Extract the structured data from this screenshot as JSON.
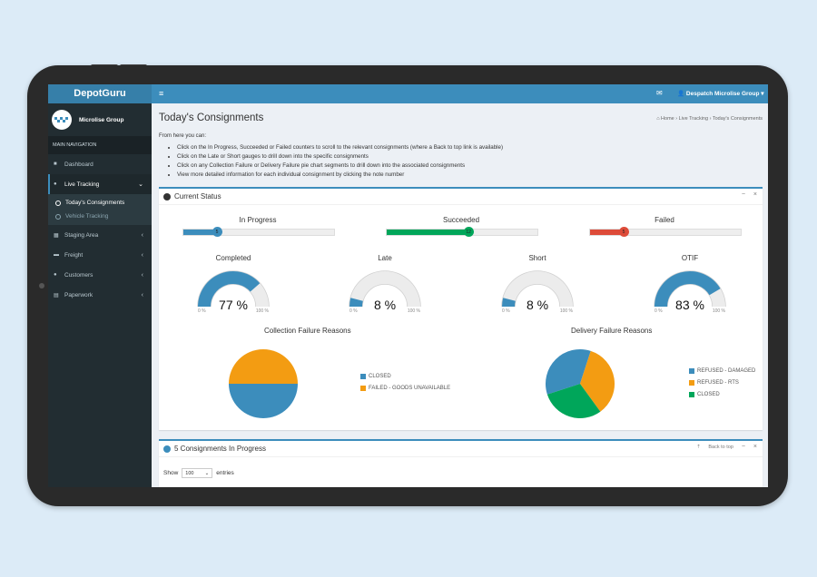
{
  "app": {
    "logo": "DepotGuru"
  },
  "user_panel": {
    "name": "Microlise Group"
  },
  "nav": {
    "header": "MAIN NAVIGATION",
    "items": [
      {
        "label": "Dashboard",
        "icon": "dashboard-icon"
      },
      {
        "label": "Live Tracking",
        "icon": "map-marker-icon"
      },
      {
        "label": "Staging Area",
        "icon": "building-icon"
      },
      {
        "label": "Freight",
        "icon": "truck-icon"
      },
      {
        "label": "Customers",
        "icon": "users-icon"
      },
      {
        "label": "Paperwork",
        "icon": "file-icon"
      }
    ],
    "submenu": [
      {
        "label": "Today's Consignments"
      },
      {
        "label": "Vehicle Tracking"
      }
    ]
  },
  "topbar": {
    "user": "Despatch Microlise Group"
  },
  "page": {
    "title": "Today's Consignments",
    "breadcrumb": [
      "Home",
      "Live Tracking",
      "Today's Consignments"
    ],
    "intro": "From here you can:",
    "bullets": [
      "Click on the In Progress, Succeeded or Failed counters to scroll to the relevant consignments (where a Back to top link is available)",
      "Click on the Late or Short gauges to drill down into the specific consignments",
      "Click on any Collection Failure or Delivery Failure pie chart segments to drill down into the associated consignments",
      "View more detailed information for each individual consignment by clicking the note number"
    ]
  },
  "status_box": {
    "title": "Current Status",
    "counters": [
      {
        "label": "In Progress",
        "value": "5",
        "fraction": 0.22,
        "color": "#3c8dbc"
      },
      {
        "label": "Succeeded",
        "value": "12",
        "fraction": 0.54,
        "color": "#00a65a"
      },
      {
        "label": "Failed",
        "value": "5",
        "fraction": 0.22,
        "color": "#dd4b39"
      }
    ],
    "gauges": [
      {
        "label": "Completed",
        "value": "77 %",
        "fraction": 0.77,
        "color": "#3c8dbc",
        "min": "0 %",
        "max": "100 %"
      },
      {
        "label": "Late",
        "value": "8 %",
        "fraction": 0.08,
        "color": "#3c8dbc",
        "min": "0 %",
        "max": "100 %"
      },
      {
        "label": "Short",
        "value": "8 %",
        "fraction": 0.08,
        "color": "#3c8dbc",
        "min": "0 %",
        "max": "100 %"
      },
      {
        "label": "OTIF",
        "value": "83 %",
        "fraction": 0.83,
        "color": "#3c8dbc",
        "min": "0 %",
        "max": "100 %"
      }
    ],
    "collection_pie": {
      "title": "Collection Failure Reasons",
      "slices": [
        {
          "label": "CLOSED",
          "value": 50,
          "color": "#3c8dbc"
        },
        {
          "label": "FAILED - GOODS UNAVAILABLE",
          "value": 50,
          "color": "#f39c12"
        }
      ]
    },
    "delivery_pie": {
      "title": "Delivery Failure Reasons",
      "slices": [
        {
          "label": "REFUSED - DAMAGED",
          "value": 35,
          "color": "#3c8dbc"
        },
        {
          "label": "REFUSED - RTS",
          "value": 35,
          "color": "#f39c12"
        },
        {
          "label": "CLOSED",
          "value": 30,
          "color": "#00a65a"
        }
      ]
    }
  },
  "progress_box": {
    "title": "5 Consignments In Progress",
    "back_to_top": "Back to top",
    "show_label": "Show",
    "entries_value": "100",
    "entries_label": "entries"
  }
}
